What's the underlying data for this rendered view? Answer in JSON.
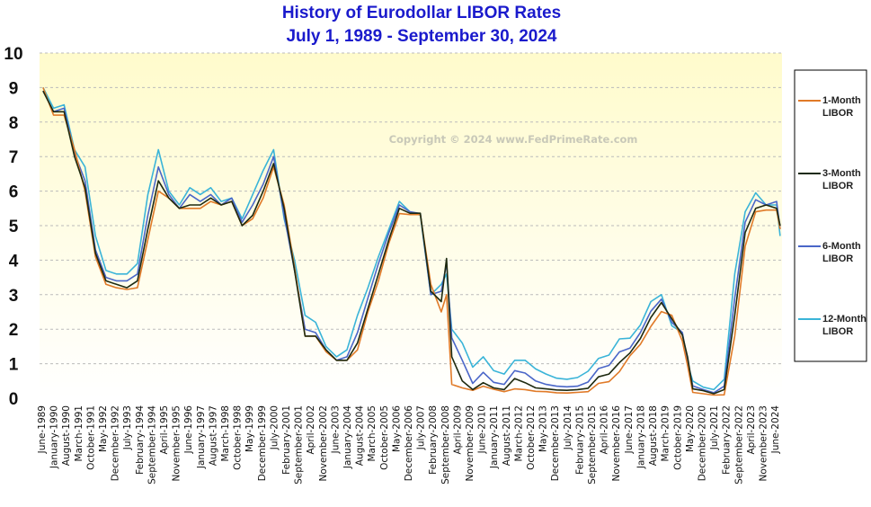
{
  "chart_data": {
    "type": "line",
    "title": "History of Eurodollar LIBOR Rates",
    "subtitle": "July 1, 1989  -  September 30, 2024",
    "watermark": "Copyright © 2024 www.FedPrimeRate.com",
    "ylim": [
      0,
      10
    ],
    "yticks": [
      "0",
      "1",
      "2",
      "3",
      "4",
      "5",
      "6",
      "7",
      "8",
      "9",
      "10"
    ],
    "grid": true,
    "legend_position": "right",
    "xticks": [
      "June-1989",
      "January-1990",
      "August-1990",
      "March-1991",
      "October-1991",
      "May-1992",
      "December-1992",
      "July-1993",
      "February-1994",
      "September-1994",
      "April-1995",
      "November-1995",
      "June-1996",
      "January-1997",
      "August-1997",
      "March-1998",
      "October-1998",
      "May-1999",
      "December-1999",
      "July-2000",
      "February-2001",
      "September-2001",
      "April-2002",
      "November-2002",
      "June-2003",
      "January-2004",
      "August-2004",
      "March-2005",
      "October-2005",
      "May-2006",
      "December-2006",
      "July-2007",
      "February-2008",
      "September-2008",
      "April-2009",
      "November-2009",
      "June-2010",
      "January-2011",
      "August-2011",
      "March-2012",
      "October-2012",
      "May-2013",
      "December-2013",
      "July-2014",
      "February-2015",
      "September-2015",
      "April-2016",
      "November-2016",
      "June-2017",
      "January-2018",
      "August-2018",
      "March-2019",
      "October-2019",
      "May-2020",
      "December-2020",
      "July-2021",
      "February-2022",
      "September-2022",
      "April-2023",
      "November-2023",
      "June-2024"
    ],
    "x": [
      "1989-07",
      "1990-01",
      "1990-07",
      "1991-01",
      "1991-07",
      "1992-01",
      "1992-07",
      "1993-01",
      "1993-07",
      "1994-01",
      "1994-07",
      "1995-01",
      "1995-07",
      "1996-01",
      "1996-07",
      "1997-01",
      "1997-07",
      "1998-01",
      "1998-07",
      "1999-01",
      "1999-07",
      "2000-01",
      "2000-07",
      "2001-01",
      "2001-07",
      "2002-01",
      "2002-07",
      "2003-01",
      "2003-07",
      "2004-01",
      "2004-07",
      "2005-01",
      "2005-07",
      "2006-01",
      "2006-07",
      "2007-01",
      "2007-07",
      "2008-01",
      "2008-07",
      "2008-10",
      "2009-01",
      "2009-07",
      "2010-01",
      "2010-07",
      "2011-01",
      "2011-07",
      "2012-01",
      "2012-07",
      "2013-01",
      "2013-07",
      "2014-01",
      "2014-07",
      "2015-01",
      "2015-07",
      "2016-01",
      "2016-07",
      "2017-01",
      "2017-07",
      "2018-01",
      "2018-07",
      "2019-01",
      "2019-07",
      "2020-01",
      "2020-04",
      "2020-07",
      "2021-01",
      "2021-07",
      "2022-01",
      "2022-07",
      "2023-01",
      "2023-07",
      "2024-01",
      "2024-07",
      "2024-09"
    ],
    "series": [
      {
        "name": "1-Month LIBOR",
        "color": "#e07a28",
        "values": [
          9.0,
          8.2,
          8.2,
          7.2,
          6.0,
          4.1,
          3.3,
          3.2,
          3.15,
          3.2,
          4.6,
          6.0,
          5.8,
          5.5,
          5.5,
          5.5,
          5.7,
          5.6,
          5.7,
          5.0,
          5.2,
          5.8,
          6.7,
          5.6,
          3.8,
          1.8,
          1.8,
          1.35,
          1.1,
          1.1,
          1.4,
          2.5,
          3.4,
          4.5,
          5.35,
          5.32,
          5.32,
          3.3,
          2.5,
          3.0,
          0.4,
          0.3,
          0.23,
          0.35,
          0.26,
          0.19,
          0.27,
          0.25,
          0.2,
          0.19,
          0.16,
          0.15,
          0.17,
          0.19,
          0.43,
          0.48,
          0.77,
          1.23,
          1.56,
          2.08,
          2.51,
          2.4,
          1.66,
          0.95,
          0.17,
          0.13,
          0.09,
          0.1,
          1.8,
          4.4,
          5.4,
          5.45,
          5.45,
          4.9
        ]
      },
      {
        "name": "3-Month LIBOR",
        "color": "#1e2a10",
        "values": [
          8.9,
          8.3,
          8.3,
          7.0,
          6.1,
          4.2,
          3.4,
          3.3,
          3.2,
          3.4,
          4.9,
          6.3,
          5.8,
          5.5,
          5.6,
          5.6,
          5.8,
          5.6,
          5.7,
          5.0,
          5.3,
          6.0,
          6.8,
          5.5,
          3.7,
          1.8,
          1.8,
          1.4,
          1.1,
          1.1,
          1.6,
          2.6,
          3.6,
          4.6,
          5.5,
          5.36,
          5.36,
          3.1,
          2.8,
          4.05,
          1.2,
          0.5,
          0.25,
          0.45,
          0.3,
          0.25,
          0.57,
          0.45,
          0.3,
          0.27,
          0.24,
          0.23,
          0.25,
          0.29,
          0.62,
          0.7,
          1.03,
          1.31,
          1.73,
          2.34,
          2.77,
          2.3,
          1.83,
          1.2,
          0.27,
          0.22,
          0.13,
          0.25,
          2.4,
          4.8,
          5.5,
          5.6,
          5.5,
          5.0
        ]
      },
      {
        "name": "6-Month LIBOR",
        "color": "#4a66c8",
        "values": [
          8.9,
          8.3,
          8.4,
          7.1,
          6.3,
          4.3,
          3.5,
          3.4,
          3.4,
          3.6,
          5.3,
          6.7,
          5.9,
          5.5,
          5.9,
          5.7,
          5.9,
          5.6,
          5.8,
          5.1,
          5.6,
          6.2,
          7.0,
          5.3,
          3.7,
          2.0,
          1.9,
          1.4,
          1.1,
          1.2,
          1.9,
          2.9,
          3.9,
          4.8,
          5.6,
          5.4,
          5.35,
          3.0,
          3.1,
          3.9,
          1.75,
          1.1,
          0.43,
          0.75,
          0.46,
          0.4,
          0.8,
          0.73,
          0.5,
          0.4,
          0.35,
          0.33,
          0.35,
          0.47,
          0.86,
          0.95,
          1.34,
          1.45,
          1.9,
          2.52,
          2.87,
          2.2,
          1.9,
          1.1,
          0.36,
          0.25,
          0.16,
          0.35,
          2.9,
          5.1,
          5.75,
          5.6,
          5.7,
          4.9
        ]
      },
      {
        "name": "12-Month LIBOR",
        "color": "#3ab4d8",
        "values": [
          9.0,
          8.4,
          8.5,
          7.2,
          6.7,
          4.7,
          3.7,
          3.6,
          3.6,
          3.9,
          5.9,
          7.2,
          6.0,
          5.6,
          6.1,
          5.9,
          6.1,
          5.7,
          5.8,
          5.2,
          5.9,
          6.6,
          7.2,
          5.2,
          4.0,
          2.4,
          2.2,
          1.5,
          1.2,
          1.4,
          2.4,
          3.2,
          4.1,
          4.9,
          5.7,
          5.4,
          5.3,
          3.0,
          3.3,
          3.6,
          2.0,
          1.6,
          0.9,
          1.2,
          0.8,
          0.7,
          1.1,
          1.1,
          0.85,
          0.7,
          0.58,
          0.55,
          0.6,
          0.78,
          1.15,
          1.25,
          1.72,
          1.74,
          2.12,
          2.8,
          3.0,
          2.1,
          1.9,
          1.0,
          0.5,
          0.32,
          0.25,
          0.55,
          3.6,
          5.4,
          5.95,
          5.6,
          5.6,
          4.7
        ]
      }
    ],
    "legend": [
      {
        "line1": "1-Month",
        "line2": "LIBOR"
      },
      {
        "line1": "3-Month",
        "line2": "LIBOR"
      },
      {
        "line1": "6-Month",
        "line2": "LIBOR"
      },
      {
        "line1": "12-Month",
        "line2": "LIBOR"
      }
    ]
  }
}
